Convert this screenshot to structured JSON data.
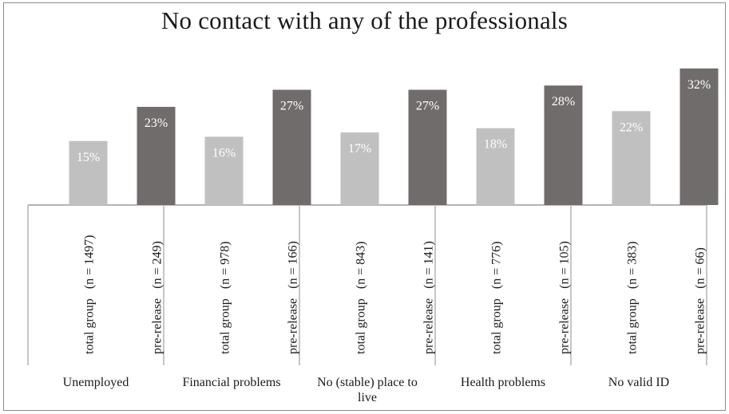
{
  "chart_data": {
    "type": "bar",
    "title": "No contact with any of the professionals",
    "xlabel": "",
    "ylabel": "",
    "ylim": [
      0,
      35
    ],
    "grid": false,
    "legend": "none",
    "value_format": "percent",
    "colors": {
      "total": "#c0c0c0",
      "pre": "#706c6c",
      "axis": "#b4b4b4",
      "text": "#1a1a1a"
    },
    "groups": [
      {
        "label": "Unemployed",
        "bars": [
          {
            "label": "total group   (n = 1497)",
            "value": 15,
            "series": "total"
          },
          {
            "label": "pre-release   (n = 249)",
            "value": 23,
            "series": "pre"
          }
        ]
      },
      {
        "label": "Financial problems",
        "bars": [
          {
            "label": "total group   (n = 978)",
            "value": 16,
            "series": "total"
          },
          {
            "label": "pre-release   (n = 166)",
            "value": 27,
            "series": "pre"
          }
        ]
      },
      {
        "label": "No (stable) place to live",
        "bars": [
          {
            "label": "total group   (n = 843)",
            "value": 17,
            "series": "total"
          },
          {
            "label": "pre-release   (n = 141)",
            "value": 27,
            "series": "pre"
          }
        ]
      },
      {
        "label": "Health problems",
        "bars": [
          {
            "label": "total group   (n = 776)",
            "value": 18,
            "series": "total"
          },
          {
            "label": "pre-release   (n = 105)",
            "value": 28,
            "series": "pre"
          }
        ]
      },
      {
        "label": "No valid ID",
        "bars": [
          {
            "label": "total group   (n = 383)",
            "value": 22,
            "series": "total"
          },
          {
            "label": "pre-release   (n = 66)",
            "value": 32,
            "series": "pre"
          }
        ]
      }
    ]
  }
}
